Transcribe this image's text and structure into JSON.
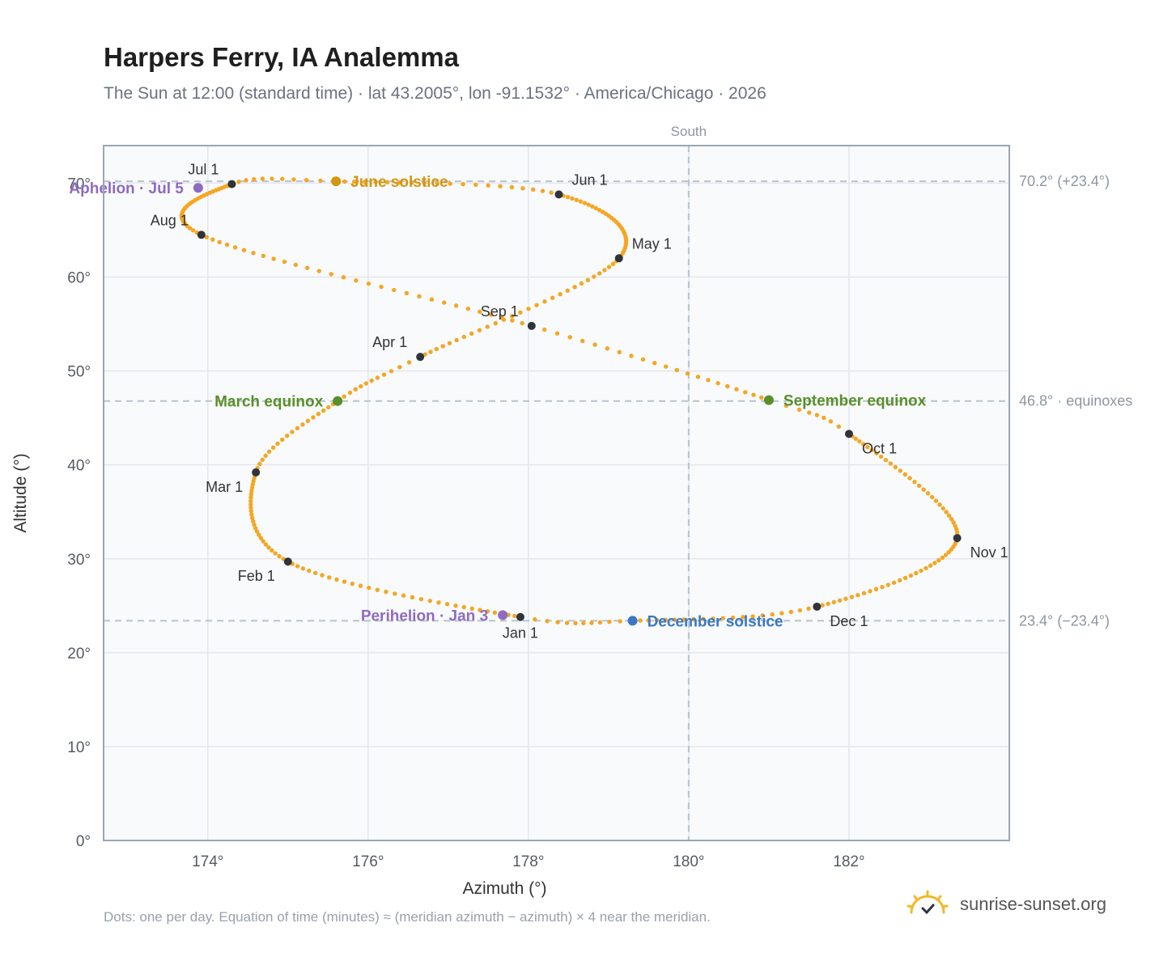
{
  "header": {
    "title": "Harpers Ferry, IA Analemma",
    "subtitle": "The Sun at 12:00 (standard time) · lat 43.2005°, lon -91.1532° · America/Chicago · 2026"
  },
  "footer": {
    "note": "Dots: one per day. Equation of time (minutes) ≈ (meridian azimuth − azimuth) × 4 near the meridian.",
    "brand": "sunrise-sunset.org"
  },
  "chart_data": {
    "type": "scatter",
    "xlabel": "Azimuth (°)",
    "ylabel": "Altitude (°)",
    "xlim": [
      172.7,
      184.0
    ],
    "ylim": [
      0,
      74
    ],
    "x_ticks": [
      174,
      176,
      178,
      180,
      182
    ],
    "x_tick_labels": [
      "174°",
      "176°",
      "178°",
      "180°",
      "182°"
    ],
    "y_ticks": [
      0,
      10,
      20,
      30,
      40,
      50,
      60,
      70
    ],
    "y_tick_labels": [
      "0°",
      "10°",
      "20°",
      "30°",
      "40°",
      "50°",
      "60°",
      "70°"
    ],
    "grid": true,
    "meridian": {
      "azimuth": 180,
      "label": "South"
    },
    "reference_lines": [
      {
        "altitude": 70.2,
        "label": "70.2° (+23.4°)"
      },
      {
        "altitude": 46.8,
        "label": "46.8° · equinoxes"
      },
      {
        "altitude": 23.4,
        "label": "23.4° (−23.4°)"
      }
    ],
    "series": [
      {
        "points_per": "day",
        "color": "#f5a623",
        "anchors": [
          {
            "doy": 1,
            "az": 177.9,
            "alt": 23.8
          },
          {
            "doy": 32,
            "az": 175.0,
            "alt": 29.7
          },
          {
            "doy": 60,
            "az": 174.6,
            "alt": 39.2
          },
          {
            "doy": 79,
            "az": 175.62,
            "alt": 46.8
          },
          {
            "doy": 91,
            "az": 176.65,
            "alt": 51.5
          },
          {
            "doy": 121,
            "az": 179.13,
            "alt": 62.0
          },
          {
            "doy": 152,
            "az": 178.38,
            "alt": 68.8
          },
          {
            "doy": 172,
            "az": 175.6,
            "alt": 70.2
          },
          {
            "doy": 182,
            "az": 174.3,
            "alt": 69.9
          },
          {
            "doy": 213,
            "az": 173.92,
            "alt": 64.5
          },
          {
            "doy": 244,
            "az": 178.04,
            "alt": 54.8
          },
          {
            "doy": 266,
            "az": 181.0,
            "alt": 46.9
          },
          {
            "doy": 274,
            "az": 182.0,
            "alt": 43.3
          },
          {
            "doy": 305,
            "az": 183.35,
            "alt": 32.2
          },
          {
            "doy": 335,
            "az": 181.6,
            "alt": 24.9
          },
          {
            "doy": 355,
            "az": 179.3,
            "alt": 23.4
          },
          {
            "doy": 366,
            "az": 177.9,
            "alt": 23.8
          }
        ]
      }
    ],
    "month_markers": [
      {
        "label": "Jan 1",
        "az": 177.9,
        "alt": 23.8,
        "pos": "below"
      },
      {
        "label": "Feb 1",
        "az": 175.0,
        "alt": 29.7,
        "pos": "below-left"
      },
      {
        "label": "Mar 1",
        "az": 174.6,
        "alt": 39.2,
        "pos": "below-left"
      },
      {
        "label": "Apr 1",
        "az": 176.65,
        "alt": 51.5,
        "pos": "above-left"
      },
      {
        "label": "May 1",
        "az": 179.13,
        "alt": 62.0,
        "pos": "above-right"
      },
      {
        "label": "Jun 1",
        "az": 178.38,
        "alt": 68.8,
        "pos": "above-right"
      },
      {
        "label": "Jul 1",
        "az": 174.3,
        "alt": 69.9,
        "pos": "above-left"
      },
      {
        "label": "Aug 1",
        "az": 173.92,
        "alt": 64.5,
        "pos": "above-left"
      },
      {
        "label": "Sep 1",
        "az": 178.04,
        "alt": 54.8,
        "pos": "above-left"
      },
      {
        "label": "Oct 1",
        "az": 182.0,
        "alt": 43.3,
        "pos": "below-right"
      },
      {
        "label": "Nov 1",
        "az": 183.35,
        "alt": 32.2,
        "pos": "below-right"
      },
      {
        "label": "Dec 1",
        "az": 181.6,
        "alt": 24.9,
        "pos": "below-right"
      }
    ],
    "events": [
      {
        "label": "June solstice",
        "az": 175.6,
        "alt": 70.2,
        "color": "#d4960f",
        "pos": "right"
      },
      {
        "label": "Aphelion · Jul 5",
        "az": 173.88,
        "alt": 69.5,
        "color": "#8e6bbf",
        "pos": "left"
      },
      {
        "label": "March equinox",
        "az": 175.62,
        "alt": 46.8,
        "color": "#5a8f29",
        "pos": "left"
      },
      {
        "label": "September equinox",
        "az": 181.0,
        "alt": 46.9,
        "color": "#5a8f29",
        "pos": "right"
      },
      {
        "label": "Perihelion · Jan 3",
        "az": 177.68,
        "alt": 24.0,
        "color": "#8e6bbf",
        "pos": "left"
      },
      {
        "label": "December solstice",
        "az": 179.3,
        "alt": 23.4,
        "color": "#3a78c2",
        "pos": "right"
      }
    ],
    "colors": {
      "path": "#f5a623",
      "marker": "#2f343b",
      "plot_bg": "#f8fafc",
      "grid": "#e3e7ec",
      "reference": "#b9c3cc",
      "axis_text": "#555b63"
    }
  }
}
